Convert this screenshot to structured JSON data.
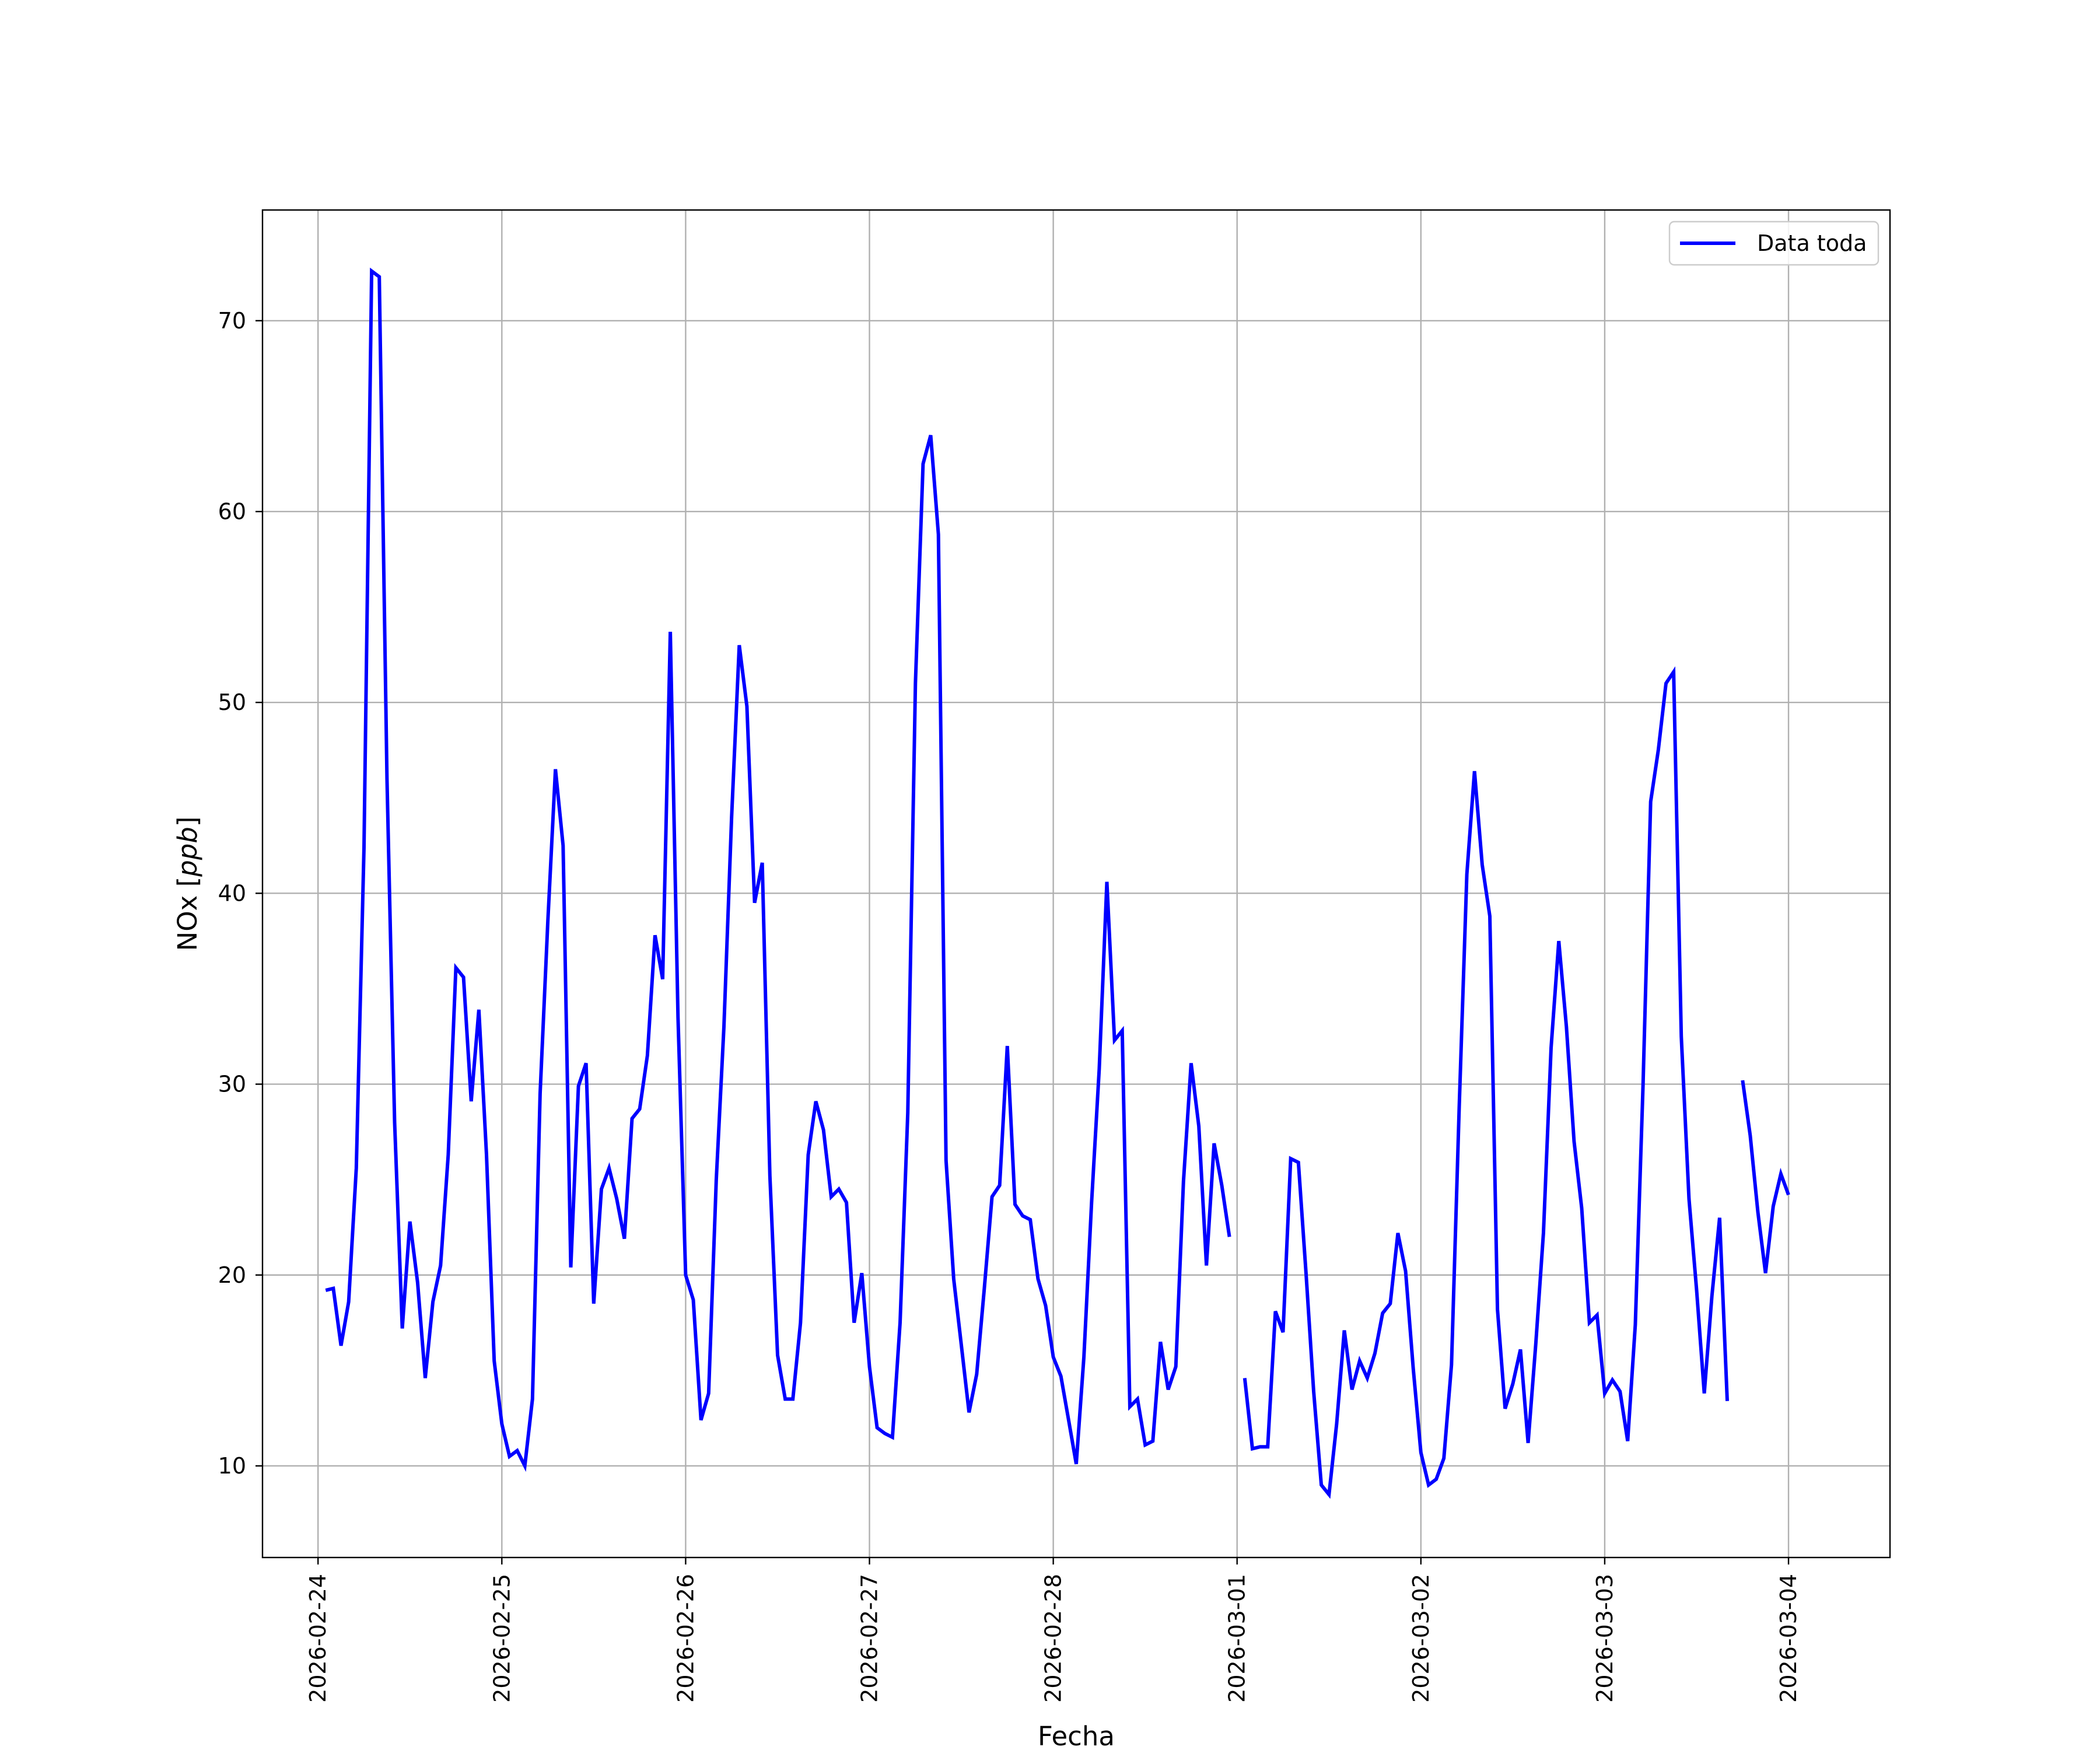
{
  "chart_data": {
    "type": "line",
    "title": "",
    "xlabel": "Fecha",
    "ylabel": "NOx [ppb]",
    "xlim": [
      "2026-02-23 16:45",
      "2026-03-04 13:15"
    ],
    "ylim": [
      5.2,
      75.8
    ],
    "x_ticks": [
      "2026-02-24",
      "2026-02-25",
      "2026-02-26",
      "2026-02-27",
      "2026-02-28",
      "2026-03-01",
      "2026-03-02",
      "2026-03-03",
      "2026-03-04"
    ],
    "y_ticks": [
      10,
      20,
      30,
      40,
      50,
      60,
      70
    ],
    "grid": true,
    "legend": {
      "position": "top-right",
      "entries": [
        "Data toda"
      ]
    },
    "series": [
      {
        "name": "Data toda",
        "color": "#0000ff",
        "points": [
          [
            "2026-02-24 01:00",
            19.2
          ],
          [
            "2026-02-24 02:00",
            19.3
          ],
          [
            "2026-02-24 03:00",
            16.3
          ],
          [
            "2026-02-24 04:00",
            18.6
          ],
          [
            "2026-02-24 05:00",
            25.6
          ],
          [
            "2026-02-24 06:00",
            42.4
          ],
          [
            "2026-02-24 07:00",
            72.6
          ],
          [
            "2026-02-24 08:00",
            72.3
          ],
          [
            "2026-02-24 09:00",
            46.0
          ],
          [
            "2026-02-24 10:00",
            28.0
          ],
          [
            "2026-02-24 11:00",
            17.2
          ],
          [
            "2026-02-24 12:00",
            22.8
          ],
          [
            "2026-02-24 13:00",
            19.6
          ],
          [
            "2026-02-24 14:00",
            14.6
          ],
          [
            "2026-02-24 15:00",
            18.6
          ],
          [
            "2026-02-24 16:00",
            20.5
          ],
          [
            "2026-02-24 17:00",
            26.3
          ],
          [
            "2026-02-24 18:00",
            36.1
          ],
          [
            "2026-02-24 19:00",
            35.6
          ],
          [
            "2026-02-24 20:00",
            29.1
          ],
          [
            "2026-02-24 21:00",
            33.9
          ],
          [
            "2026-02-24 22:00",
            26.3
          ],
          [
            "2026-02-24 23:00",
            15.5
          ],
          [
            "2026-02-25 00:00",
            12.2
          ],
          [
            "2026-02-25 01:00",
            10.5
          ],
          [
            "2026-02-25 02:00",
            10.8
          ],
          [
            "2026-02-25 03:00",
            10.0
          ],
          [
            "2026-02-25 04:00",
            13.5
          ],
          [
            "2026-02-25 05:00",
            29.5
          ],
          [
            "2026-02-25 06:00",
            38.5
          ],
          [
            "2026-02-25 07:00",
            46.5
          ],
          [
            "2026-02-25 08:00",
            42.5
          ],
          [
            "2026-02-25 09:00",
            20.4
          ],
          [
            "2026-02-25 10:00",
            29.9
          ],
          [
            "2026-02-25 11:00",
            31.1
          ],
          [
            "2026-02-25 12:00",
            18.5
          ],
          [
            "2026-02-25 13:00",
            24.5
          ],
          [
            "2026-02-25 14:00",
            25.6
          ],
          [
            "2026-02-25 15:00",
            24.0
          ],
          [
            "2026-02-25 16:00",
            21.9
          ],
          [
            "2026-02-25 17:00",
            28.2
          ],
          [
            "2026-02-25 18:00",
            28.7
          ],
          [
            "2026-02-25 19:00",
            31.5
          ],
          [
            "2026-02-25 20:00",
            37.8
          ],
          [
            "2026-02-25 21:00",
            35.5
          ],
          [
            "2026-02-25 22:00",
            53.7
          ],
          [
            "2026-02-25 23:00",
            33.5
          ],
          [
            "2026-02-26 00:00",
            20.0
          ],
          [
            "2026-02-26 01:00",
            18.7
          ],
          [
            "2026-02-26 02:00",
            12.4
          ],
          [
            "2026-02-26 03:00",
            13.8
          ],
          [
            "2026-02-26 04:00",
            25.0
          ],
          [
            "2026-02-26 05:00",
            33.0
          ],
          [
            "2026-02-26 06:00",
            44.0
          ],
          [
            "2026-02-26 07:00",
            53.0
          ],
          [
            "2026-02-26 08:00",
            49.8
          ],
          [
            "2026-02-26 09:00",
            39.5
          ],
          [
            "2026-02-26 10:00",
            41.6
          ],
          [
            "2026-02-26 11:00",
            25.2
          ],
          [
            "2026-02-26 12:00",
            15.8
          ],
          [
            "2026-02-26 13:00",
            13.5
          ],
          [
            "2026-02-26 14:00",
            13.5
          ],
          [
            "2026-02-26 15:00",
            17.5
          ],
          [
            "2026-02-26 16:00",
            26.3
          ],
          [
            "2026-02-26 17:00",
            29.1
          ],
          [
            "2026-02-26 18:00",
            27.6
          ],
          [
            "2026-02-26 19:00",
            24.1
          ],
          [
            "2026-02-26 20:00",
            24.5
          ],
          [
            "2026-02-26 21:00",
            23.8
          ],
          [
            "2026-02-26 22:00",
            17.5
          ],
          [
            "2026-02-26 23:00",
            20.1
          ],
          [
            "2026-02-27 00:00",
            15.2
          ],
          [
            "2026-02-27 01:00",
            12.0
          ],
          [
            "2026-02-27 02:00",
            11.7
          ],
          [
            "2026-02-27 03:00",
            11.5
          ],
          [
            "2026-02-27 04:00",
            17.5
          ],
          [
            "2026-02-27 05:00",
            28.5
          ],
          [
            "2026-02-27 06:00",
            51.0
          ],
          [
            "2026-02-27 07:00",
            62.5
          ],
          [
            "2026-02-27 08:00",
            64.0
          ],
          [
            "2026-02-27 09:00",
            58.8
          ],
          [
            "2026-02-27 10:00",
            26.0
          ],
          [
            "2026-02-27 11:00",
            19.8
          ],
          [
            "2026-02-27 12:00",
            16.3
          ],
          [
            "2026-02-27 13:00",
            12.8
          ],
          [
            "2026-02-27 14:00",
            14.8
          ],
          [
            "2026-02-27 15:00",
            19.3
          ],
          [
            "2026-02-27 16:00",
            24.1
          ],
          [
            "2026-02-27 17:00",
            24.7
          ],
          [
            "2026-02-27 18:00",
            32.0
          ],
          [
            "2026-02-27 19:00",
            23.7
          ],
          [
            "2026-02-27 20:00",
            23.1
          ],
          [
            "2026-02-27 21:00",
            22.9
          ],
          [
            "2026-02-27 22:00",
            19.8
          ],
          [
            "2026-02-27 23:00",
            18.4
          ],
          [
            "2026-02-28 00:00",
            15.7
          ],
          [
            "2026-02-28 01:00",
            14.7
          ],
          [
            "2026-02-28 02:00",
            12.4
          ],
          [
            "2026-02-28 03:00",
            10.1
          ],
          [
            "2026-02-28 04:00",
            15.7
          ],
          [
            "2026-02-28 05:00",
            23.8
          ],
          [
            "2026-02-28 06:00",
            30.8
          ],
          [
            "2026-02-28 07:00",
            40.6
          ],
          [
            "2026-02-28 08:00",
            32.3
          ],
          [
            "2026-02-28 09:00",
            32.8
          ],
          [
            "2026-02-28 10:00",
            13.1
          ],
          [
            "2026-02-28 11:00",
            13.5
          ],
          [
            "2026-02-28 12:00",
            11.1
          ],
          [
            "2026-02-28 13:00",
            11.3
          ],
          [
            "2026-02-28 14:00",
            16.5
          ],
          [
            "2026-02-28 15:00",
            14.0
          ],
          [
            "2026-02-28 16:00",
            15.2
          ],
          [
            "2026-02-28 17:00",
            24.9
          ],
          [
            "2026-02-28 18:00",
            31.1
          ],
          [
            "2026-02-28 19:00",
            27.8
          ],
          [
            "2026-02-28 20:00",
            20.5
          ],
          [
            "2026-02-28 21:00",
            26.9
          ],
          [
            "2026-02-28 22:00",
            24.7
          ],
          [
            "2026-02-28 23:00",
            22.0
          ],
          [
            "2026-03-01 00:00",
            null
          ],
          [
            "2026-03-01 01:00",
            14.6
          ],
          [
            "2026-03-01 02:00",
            10.9
          ],
          [
            "2026-03-01 03:00",
            11.0
          ],
          [
            "2026-03-01 04:00",
            11.0
          ],
          [
            "2026-03-01 05:00",
            18.1
          ],
          [
            "2026-03-01 06:00",
            17.0
          ],
          [
            "2026-03-01 07:00",
            26.1
          ],
          [
            "2026-03-01 08:00",
            25.9
          ],
          [
            "2026-03-01 09:00",
            20.1
          ],
          [
            "2026-03-01 10:00",
            13.9
          ],
          [
            "2026-03-01 11:00",
            9.0
          ],
          [
            "2026-03-01 12:00",
            8.5
          ],
          [
            "2026-03-01 13:00",
            12.2
          ],
          [
            "2026-03-01 14:00",
            17.1
          ],
          [
            "2026-03-01 15:00",
            14.0
          ],
          [
            "2026-03-01 16:00",
            15.5
          ],
          [
            "2026-03-01 17:00",
            14.6
          ],
          [
            "2026-03-01 18:00",
            15.9
          ],
          [
            "2026-03-01 19:00",
            18.0
          ],
          [
            "2026-03-01 20:00",
            18.5
          ],
          [
            "2026-03-01 21:00",
            22.2
          ],
          [
            "2026-03-01 22:00",
            20.2
          ],
          [
            "2026-03-01 23:00",
            15.1
          ],
          [
            "2026-03-02 00:00",
            10.7
          ],
          [
            "2026-03-02 01:00",
            9.0
          ],
          [
            "2026-03-02 02:00",
            9.3
          ],
          [
            "2026-03-02 03:00",
            10.4
          ],
          [
            "2026-03-02 04:00",
            15.3
          ],
          [
            "2026-03-02 05:00",
            28.8
          ],
          [
            "2026-03-02 06:00",
            41.0
          ],
          [
            "2026-03-02 07:00",
            46.4
          ],
          [
            "2026-03-02 08:00",
            41.5
          ],
          [
            "2026-03-02 09:00",
            38.8
          ],
          [
            "2026-03-02 10:00",
            18.2
          ],
          [
            "2026-03-02 11:00",
            13.0
          ],
          [
            "2026-03-02 12:00",
            14.3
          ],
          [
            "2026-03-02 13:00",
            16.1
          ],
          [
            "2026-03-02 14:00",
            11.2
          ],
          [
            "2026-03-02 15:00",
            16.4
          ],
          [
            "2026-03-02 16:00",
            22.2
          ],
          [
            "2026-03-02 17:00",
            31.9
          ],
          [
            "2026-03-02 18:00",
            37.5
          ],
          [
            "2026-03-02 19:00",
            33.0
          ],
          [
            "2026-03-02 20:00",
            27.0
          ],
          [
            "2026-03-02 21:00",
            23.5
          ],
          [
            "2026-03-02 22:00",
            17.5
          ],
          [
            "2026-03-02 23:00",
            17.9
          ],
          [
            "2026-03-03 00:00",
            13.8
          ],
          [
            "2026-03-03 01:00",
            14.5
          ],
          [
            "2026-03-03 02:00",
            13.9
          ],
          [
            "2026-03-03 03:00",
            11.3
          ],
          [
            "2026-03-03 04:00",
            17.4
          ],
          [
            "2026-03-03 05:00",
            29.9
          ],
          [
            "2026-03-03 06:00",
            44.8
          ],
          [
            "2026-03-03 07:00",
            47.5
          ],
          [
            "2026-03-03 08:00",
            51.0
          ],
          [
            "2026-03-03 09:00",
            51.6
          ],
          [
            "2026-03-03 10:00",
            32.5
          ],
          [
            "2026-03-03 11:00",
            24.0
          ],
          [
            "2026-03-03 12:00",
            19.2
          ],
          [
            "2026-03-03 13:00",
            13.8
          ],
          [
            "2026-03-03 14:00",
            18.9
          ],
          [
            "2026-03-03 15:00",
            23.0
          ],
          [
            "2026-03-03 16:00",
            13.4
          ],
          [
            "2026-03-03 17:00",
            null
          ],
          [
            "2026-03-03 18:00",
            30.2
          ],
          [
            "2026-03-03 19:00",
            27.3
          ],
          [
            "2026-03-03 20:00",
            23.3
          ],
          [
            "2026-03-03 21:00",
            20.1
          ],
          [
            "2026-03-03 22:00",
            23.6
          ],
          [
            "2026-03-03 23:00",
            25.3
          ],
          [
            "2026-03-04 00:00",
            24.2
          ]
        ]
      }
    ]
  }
}
